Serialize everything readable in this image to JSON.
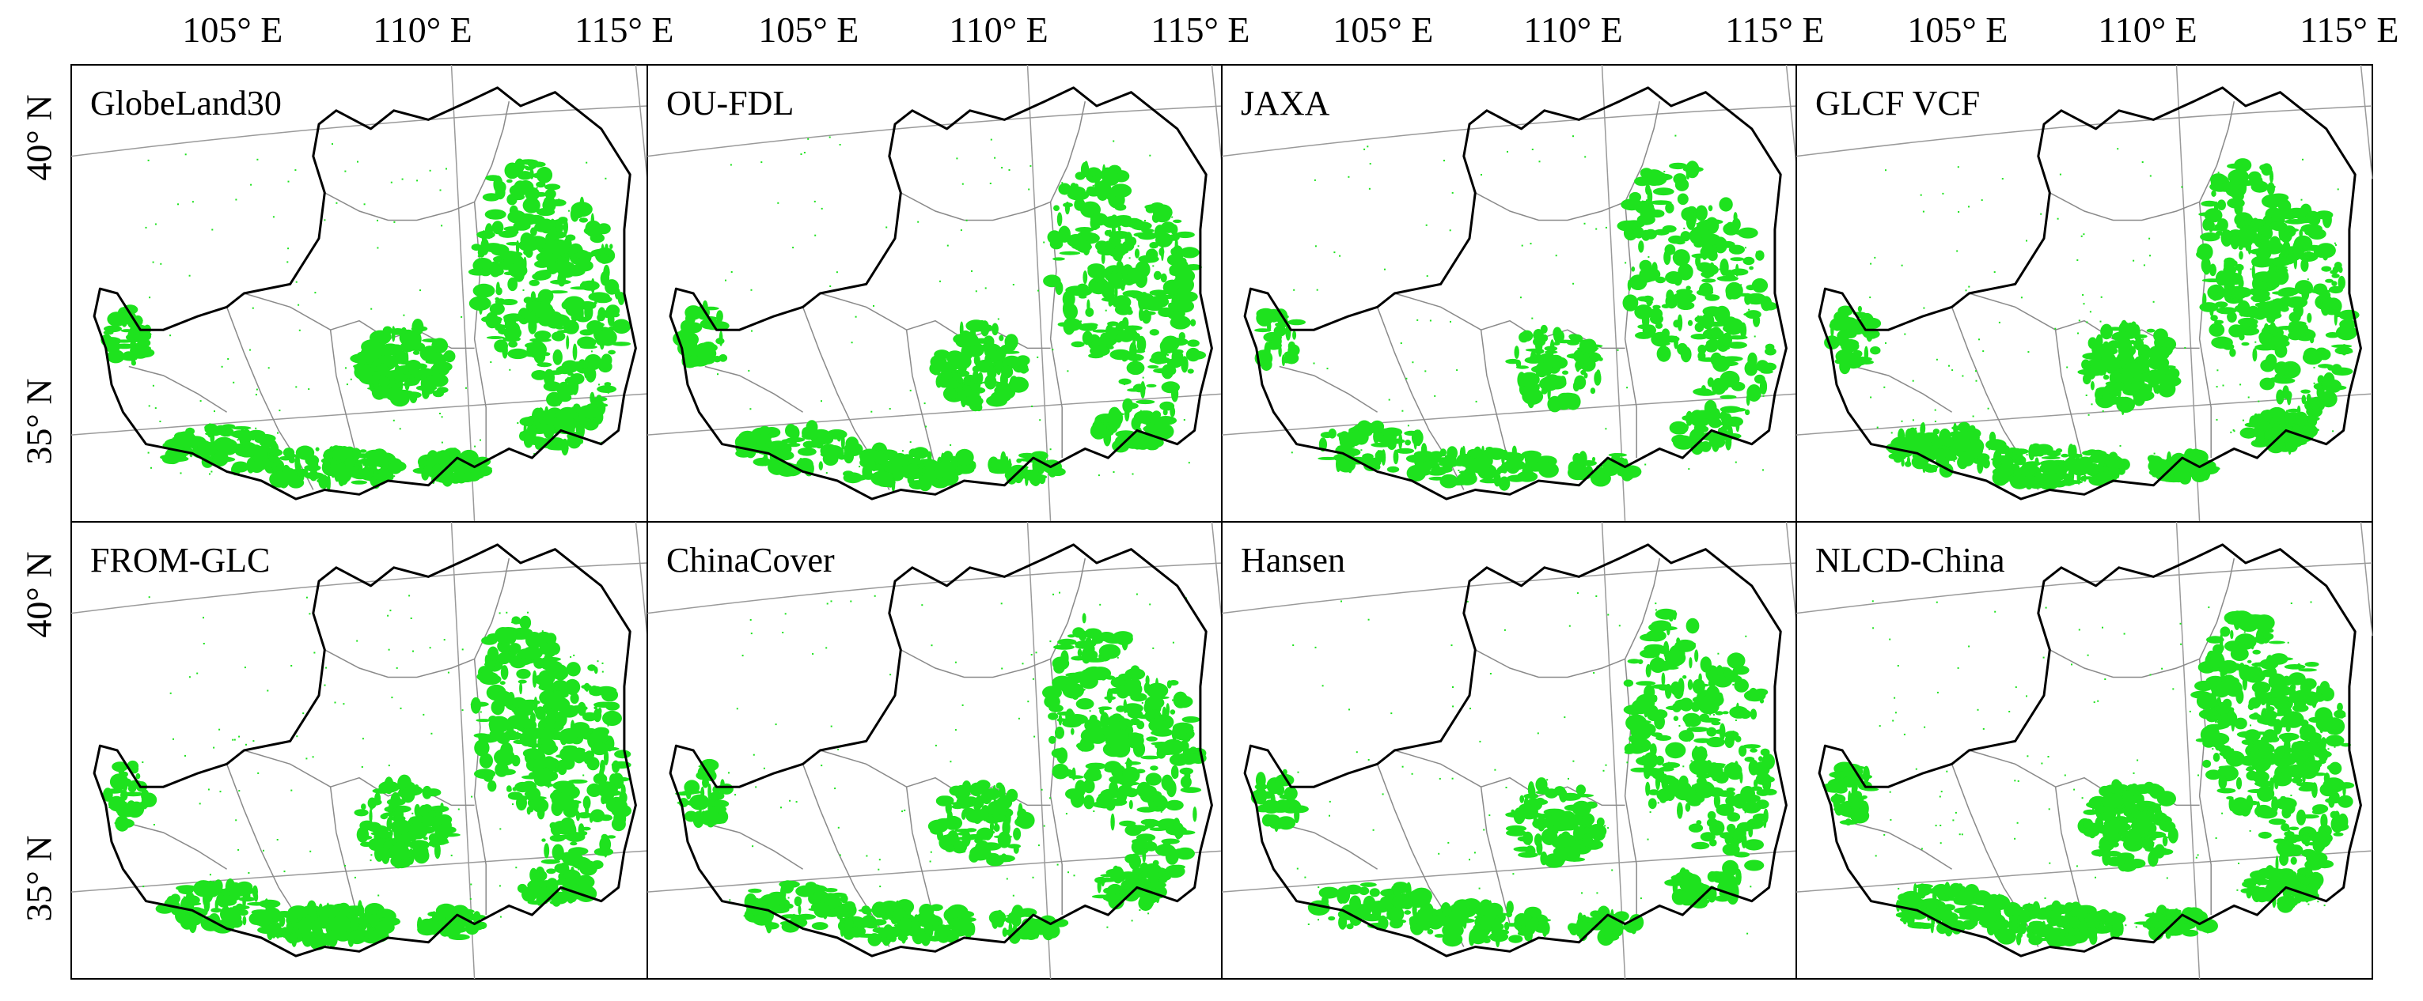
{
  "figure": {
    "longitude_labels": [
      "105° E",
      "110° E",
      "115° E"
    ],
    "latitude_labels": [
      "40° N",
      "35° N"
    ],
    "forest_color": "#1ee21e",
    "boundary_color": "#000000",
    "gridline_color": "#9a9a9a",
    "province_line_color": "#8a8a8a"
  },
  "panels": [
    {
      "title": "GlobeLand30"
    },
    {
      "title": "OU-FDL"
    },
    {
      "title": "JAXA"
    },
    {
      "title": "GLCF VCF"
    },
    {
      "title": "FROM-GLC"
    },
    {
      "title": "ChinaCover"
    },
    {
      "title": "Hansen"
    },
    {
      "title": "NLCD-China"
    }
  ]
}
